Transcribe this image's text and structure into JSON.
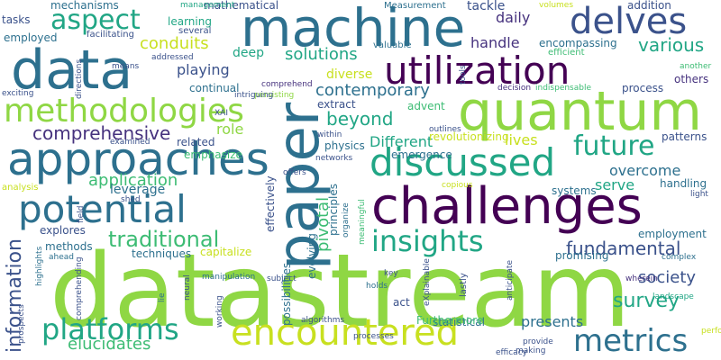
{
  "palette": {
    "green": "#8fd744",
    "lime": "#c8e020",
    "teal": "#21a685",
    "teal_light": "#3dbc74",
    "blue": "#2d708e",
    "navy": "#3b528b",
    "purple": "#46327e",
    "dark": "#440154"
  },
  "words": [
    "datastream",
    "quantum",
    "machine",
    "challenges",
    "data",
    "paper",
    "approaches",
    "utilization",
    "delves",
    "discussed",
    "potential",
    "encountered",
    "methodologies",
    "metrics",
    "insights",
    "platforms",
    "aspect",
    "future",
    "information",
    "traditional",
    "comprehensive",
    "survey",
    "fundamental",
    "various",
    "beyond",
    "contemporary",
    "conduits",
    "solutions",
    "pivotal",
    "application",
    "overcome",
    "elucidates",
    "society",
    "presents",
    "serve",
    "Different",
    "role",
    "playing",
    "lives",
    "leverage",
    "handle",
    "daily",
    "tasks",
    "mechanisms",
    "learning",
    "mathematical",
    "Measurement",
    "tackle",
    "addition",
    "employed",
    "facilitating",
    "several",
    "management",
    "valuable",
    "volumes",
    "efficient",
    "encompassing",
    "others",
    "another",
    "process",
    "deep",
    "diverse",
    "continual",
    "related",
    "emphasize",
    "extract",
    "advent",
    "revolutionizing",
    "patterns",
    "emergence",
    "principles",
    "physics",
    "networks",
    "outlines",
    "within",
    "comprehend",
    "persisting",
    "intriguing",
    "XAI",
    "tools",
    "means",
    "directions",
    "exciting",
    "addressed",
    "decision",
    "indispensable",
    "examined",
    "analysis",
    "field",
    "shed",
    "explores",
    "methods",
    "ahead",
    "capitalize",
    "techniques",
    "promising",
    "employment",
    "handling",
    "light",
    "systems",
    "offers",
    "copious",
    "effectively",
    "statistical",
    "Furthermore",
    "act",
    "holds",
    "key",
    "eXplainable",
    "lastly",
    "anticipate",
    "wherein",
    "complex",
    "landscape",
    "performance",
    "provide",
    "making",
    "efficacy",
    "processes",
    "algorithms",
    "working",
    "neural",
    "lie",
    "manipulation",
    "highlights",
    "prospects",
    "comprehending",
    "subject",
    "evolving",
    "meaningful",
    "organize",
    "possibilities",
    "analyzing"
  ]
}
